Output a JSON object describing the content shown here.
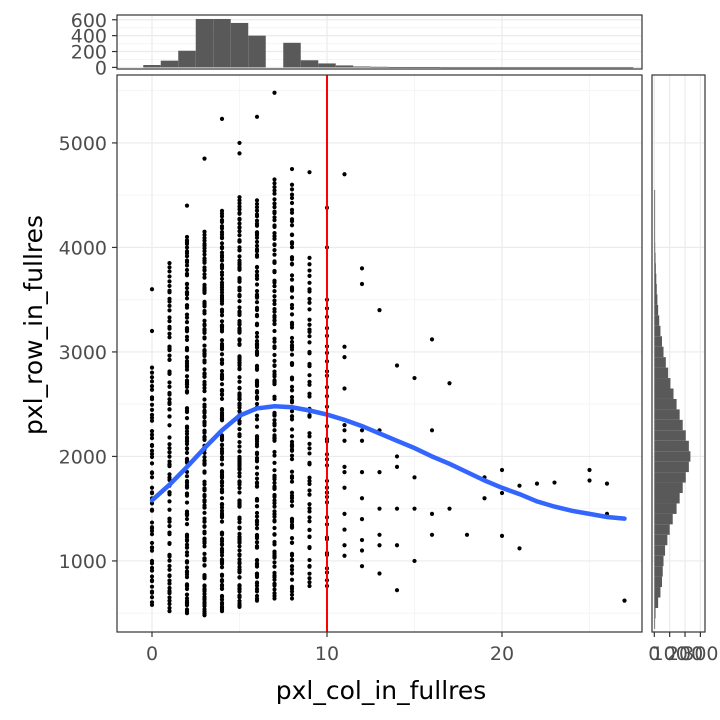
{
  "colors": {
    "panel_border": "#333333",
    "grid_major": "#ebebeb",
    "grid_minor": "#f5f5f5",
    "points": "#000000",
    "smooth_line": "#3366ff",
    "vline": "#ff0000",
    "histogram": "#595959"
  },
  "chart_data": [
    {
      "id": "main",
      "type": "scatter",
      "xlabel": "pxl_col_in_fullres",
      "ylabel": "pxl_row_in_fullres",
      "xlim": [
        -2,
        28
      ],
      "ylim": [
        320,
        5650
      ],
      "x_ticks": [
        0,
        10,
        20
      ],
      "x_tick_labels": [
        "0",
        "10",
        "20"
      ],
      "y_ticks": [
        1000,
        2000,
        3000,
        4000,
        5000
      ],
      "y_tick_labels": [
        "1000",
        "2000",
        "3000",
        "4000",
        "5000"
      ],
      "grid": true,
      "vline": {
        "x": 10
      },
      "columns": [
        {
          "x": 0,
          "min": 580,
          "max": 2850,
          "n": 55
        },
        {
          "x": 1,
          "min": 520,
          "max": 3850,
          "n": 85
        },
        {
          "x": 2,
          "min": 500,
          "max": 4100,
          "n": 120
        },
        {
          "x": 3,
          "min": 480,
          "max": 4150,
          "n": 140
        },
        {
          "x": 4,
          "min": 520,
          "max": 4350,
          "n": 150
        },
        {
          "x": 5,
          "min": 560,
          "max": 4480,
          "n": 150
        },
        {
          "x": 6,
          "min": 620,
          "max": 4450,
          "n": 130
        },
        {
          "x": 7,
          "min": 640,
          "max": 4650,
          "n": 120
        },
        {
          "x": 8,
          "min": 640,
          "max": 4600,
          "n": 95
        },
        {
          "x": 9,
          "min": 760,
          "max": 3900,
          "n": 60
        },
        {
          "x": 10,
          "min": 760,
          "max": 3500,
          "n": 35
        }
      ],
      "points": [
        {
          "x": 0,
          "y": 3600
        },
        {
          "x": 0,
          "y": 3200
        },
        {
          "x": 2,
          "y": 4400
        },
        {
          "x": 2,
          "y": 4050
        },
        {
          "x": 3,
          "y": 4850
        },
        {
          "x": 4,
          "y": 5230
        },
        {
          "x": 5,
          "y": 5000
        },
        {
          "x": 5,
          "y": 4900
        },
        {
          "x": 6,
          "y": 5250
        },
        {
          "x": 7,
          "y": 5480
        },
        {
          "x": 8,
          "y": 4750
        },
        {
          "x": 9,
          "y": 4720
        },
        {
          "x": 10,
          "y": 4380
        },
        {
          "x": 10,
          "y": 4000
        },
        {
          "x": 11,
          "y": 4700
        },
        {
          "x": 11,
          "y": 3050
        },
        {
          "x": 11,
          "y": 2950
        },
        {
          "x": 11,
          "y": 2650
        },
        {
          "x": 11,
          "y": 2300
        },
        {
          "x": 11,
          "y": 2250
        },
        {
          "x": 11,
          "y": 2150
        },
        {
          "x": 11,
          "y": 1900
        },
        {
          "x": 11,
          "y": 1850
        },
        {
          "x": 11,
          "y": 1700
        },
        {
          "x": 11,
          "y": 1450
        },
        {
          "x": 11,
          "y": 1300
        },
        {
          "x": 11,
          "y": 1150
        },
        {
          "x": 11,
          "y": 1050
        },
        {
          "x": 12,
          "y": 3800
        },
        {
          "x": 12,
          "y": 3650
        },
        {
          "x": 12,
          "y": 2250
        },
        {
          "x": 12,
          "y": 2150
        },
        {
          "x": 12,
          "y": 1850
        },
        {
          "x": 12,
          "y": 1600
        },
        {
          "x": 12,
          "y": 1400
        },
        {
          "x": 12,
          "y": 1200
        },
        {
          "x": 12,
          "y": 1100
        },
        {
          "x": 12,
          "y": 950
        },
        {
          "x": 13,
          "y": 3400
        },
        {
          "x": 13,
          "y": 2250
        },
        {
          "x": 13,
          "y": 1850
        },
        {
          "x": 13,
          "y": 1500
        },
        {
          "x": 13,
          "y": 1250
        },
        {
          "x": 13,
          "y": 1150
        },
        {
          "x": 13,
          "y": 880
        },
        {
          "x": 14,
          "y": 2870
        },
        {
          "x": 14,
          "y": 2000
        },
        {
          "x": 14,
          "y": 1900
        },
        {
          "x": 14,
          "y": 1500
        },
        {
          "x": 14,
          "y": 1150
        },
        {
          "x": 14,
          "y": 720
        },
        {
          "x": 15,
          "y": 2750
        },
        {
          "x": 15,
          "y": 1800
        },
        {
          "x": 15,
          "y": 1500
        },
        {
          "x": 15,
          "y": 1000
        },
        {
          "x": 16,
          "y": 3120
        },
        {
          "x": 16,
          "y": 2250
        },
        {
          "x": 16,
          "y": 1450
        },
        {
          "x": 16,
          "y": 1250
        },
        {
          "x": 17,
          "y": 2700
        },
        {
          "x": 17,
          "y": 1500
        },
        {
          "x": 18,
          "y": 1250
        },
        {
          "x": 19,
          "y": 1800
        },
        {
          "x": 19,
          "y": 1600
        },
        {
          "x": 20,
          "y": 1870
        },
        {
          "x": 20,
          "y": 1650
        },
        {
          "x": 20,
          "y": 1240
        },
        {
          "x": 21,
          "y": 1720
        },
        {
          "x": 21,
          "y": 1120
        },
        {
          "x": 22,
          "y": 1740
        },
        {
          "x": 23,
          "y": 1750
        },
        {
          "x": 25,
          "y": 1870
        },
        {
          "x": 25,
          "y": 1770
        },
        {
          "x": 26,
          "y": 1740
        },
        {
          "x": 26,
          "y": 1450
        },
        {
          "x": 27,
          "y": 620
        }
      ],
      "smooth": [
        {
          "x": 0,
          "y": 1580
        },
        {
          "x": 1,
          "y": 1730
        },
        {
          "x": 2,
          "y": 1900
        },
        {
          "x": 3,
          "y": 2080
        },
        {
          "x": 4,
          "y": 2250
        },
        {
          "x": 5,
          "y": 2390
        },
        {
          "x": 6,
          "y": 2460
        },
        {
          "x": 7,
          "y": 2480
        },
        {
          "x": 8,
          "y": 2470
        },
        {
          "x": 9,
          "y": 2440
        },
        {
          "x": 10,
          "y": 2400
        },
        {
          "x": 11,
          "y": 2350
        },
        {
          "x": 12,
          "y": 2290
        },
        {
          "x": 13,
          "y": 2220
        },
        {
          "x": 14,
          "y": 2150
        },
        {
          "x": 15,
          "y": 2080
        },
        {
          "x": 16,
          "y": 2000
        },
        {
          "x": 17,
          "y": 1930
        },
        {
          "x": 18,
          "y": 1850
        },
        {
          "x": 19,
          "y": 1770
        },
        {
          "x": 20,
          "y": 1700
        },
        {
          "x": 21,
          "y": 1640
        },
        {
          "x": 22,
          "y": 1570
        },
        {
          "x": 23,
          "y": 1520
        },
        {
          "x": 24,
          "y": 1480
        },
        {
          "x": 25,
          "y": 1450
        },
        {
          "x": 26,
          "y": 1420
        },
        {
          "x": 27,
          "y": 1405
        }
      ]
    },
    {
      "id": "top_histogram",
      "type": "bar",
      "orientation": "vertical",
      "ylim": [
        -20,
        660
      ],
      "y_ticks": [
        0,
        200,
        400,
        600
      ],
      "y_tick_labels": [
        "0",
        "200",
        "400",
        "600"
      ],
      "grid": true,
      "bins": [
        {
          "x0": -0.5,
          "x1": 0.5,
          "count": 30
        },
        {
          "x0": 0.5,
          "x1": 1.5,
          "count": 85
        },
        {
          "x0": 1.5,
          "x1": 2.5,
          "count": 210
        },
        {
          "x0": 2.5,
          "x1": 3.5,
          "count": 610
        },
        {
          "x0": 3.5,
          "x1": 4.5,
          "count": 610
        },
        {
          "x0": 4.5,
          "x1": 5.5,
          "count": 560
        },
        {
          "x0": 5.5,
          "x1": 6.5,
          "count": 400
        },
        {
          "x0": 6.5,
          "x1": 7.5,
          "count": 0
        },
        {
          "x0": 7.5,
          "x1": 8.5,
          "count": 310
        },
        {
          "x0": 8.5,
          "x1": 9.5,
          "count": 90
        },
        {
          "x0": 9.5,
          "x1": 10.5,
          "count": 50
        },
        {
          "x0": 10.5,
          "x1": 11.5,
          "count": 25
        },
        {
          "x0": 11.5,
          "x1": 12.5,
          "count": 12
        },
        {
          "x0": 12.5,
          "x1": 13.5,
          "count": 8
        },
        {
          "x0": 13.5,
          "x1": 14.5,
          "count": 5
        },
        {
          "x0": 14.5,
          "x1": 16.5,
          "count": 3
        },
        {
          "x0": 16.5,
          "x1": 27.5,
          "count": 1
        }
      ]
    },
    {
      "id": "right_histogram",
      "type": "bar",
      "orientation": "horizontal",
      "xlim": [
        -15,
        330
      ],
      "x_ticks": [
        0,
        100,
        200,
        300
      ],
      "x_tick_labels": [
        "0",
        "100",
        "200",
        "300"
      ],
      "grid": true,
      "bin_width": 100,
      "bins": [
        {
          "y": 400,
          "count": 2
        },
        {
          "y": 500,
          "count": 8
        },
        {
          "y": 600,
          "count": 25
        },
        {
          "y": 700,
          "count": 40
        },
        {
          "y": 800,
          "count": 50
        },
        {
          "y": 900,
          "count": 55
        },
        {
          "y": 1000,
          "count": 60
        },
        {
          "y": 1100,
          "count": 70
        },
        {
          "y": 1200,
          "count": 85
        },
        {
          "y": 1300,
          "count": 100
        },
        {
          "y": 1400,
          "count": 120
        },
        {
          "y": 1500,
          "count": 145
        },
        {
          "y": 1600,
          "count": 165
        },
        {
          "y": 1700,
          "count": 185
        },
        {
          "y": 1800,
          "count": 205
        },
        {
          "y": 1900,
          "count": 225
        },
        {
          "y": 2000,
          "count": 235
        },
        {
          "y": 2100,
          "count": 225
        },
        {
          "y": 2200,
          "count": 205
        },
        {
          "y": 2300,
          "count": 185
        },
        {
          "y": 2400,
          "count": 165
        },
        {
          "y": 2500,
          "count": 145
        },
        {
          "y": 2600,
          "count": 125
        },
        {
          "y": 2700,
          "count": 105
        },
        {
          "y": 2800,
          "count": 90
        },
        {
          "y": 2900,
          "count": 75
        },
        {
          "y": 3000,
          "count": 60
        },
        {
          "y": 3100,
          "count": 50
        },
        {
          "y": 3200,
          "count": 40
        },
        {
          "y": 3300,
          "count": 32
        },
        {
          "y": 3400,
          "count": 25
        },
        {
          "y": 3500,
          "count": 20
        },
        {
          "y": 3600,
          "count": 16
        },
        {
          "y": 3700,
          "count": 13
        },
        {
          "y": 3800,
          "count": 10
        },
        {
          "y": 3900,
          "count": 8
        },
        {
          "y": 4000,
          "count": 6
        },
        {
          "y": 4100,
          "count": 5
        },
        {
          "y": 4200,
          "count": 4
        },
        {
          "y": 4300,
          "count": 3
        },
        {
          "y": 4400,
          "count": 2
        },
        {
          "y": 4500,
          "count": 1
        }
      ]
    }
  ]
}
